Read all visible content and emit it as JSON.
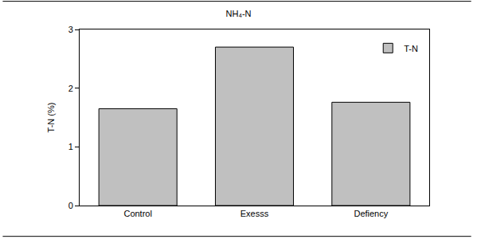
{
  "chart_data": {
    "type": "bar",
    "title": "NH₄-N",
    "categories": [
      "Control",
      "Exesss",
      "Defiency"
    ],
    "series": [
      {
        "name": "T-N",
        "color": "#c0c0c0",
        "values": [
          1.65,
          2.7,
          1.76
        ]
      }
    ],
    "y_label": "T-N (%)",
    "ylim": [
      0,
      3
    ],
    "yticks": [
      0,
      1,
      2,
      3
    ],
    "grid": false,
    "legend": "upper right"
  }
}
